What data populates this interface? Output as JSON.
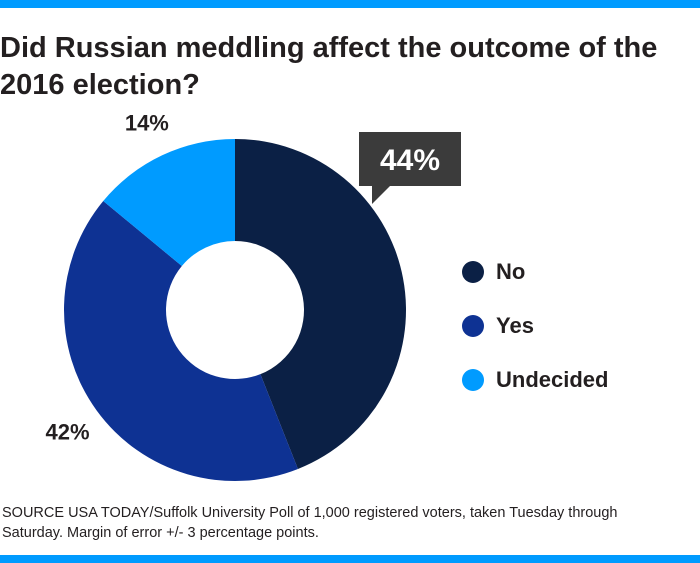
{
  "title": "Did Russian meddling affect the outcome of the 2016 election?",
  "chart_data": {
    "type": "pie",
    "title": "Did Russian meddling affect the outcome of the 2016 election?",
    "categories": [
      "No",
      "Yes",
      "Undecided"
    ],
    "values": [
      44,
      42,
      14
    ],
    "labels": [
      "44%",
      "42%",
      "14%"
    ],
    "colors": [
      "#0b2045",
      "#0e3293",
      "#009bff"
    ],
    "donut": true,
    "highlight": "No",
    "legend_position": "right"
  },
  "source": "SOURCE USA TODAY/Suffolk University Poll of 1,000 registered voters, taken Tuesday through Saturday. Margin of error +/- 3 percentage points."
}
